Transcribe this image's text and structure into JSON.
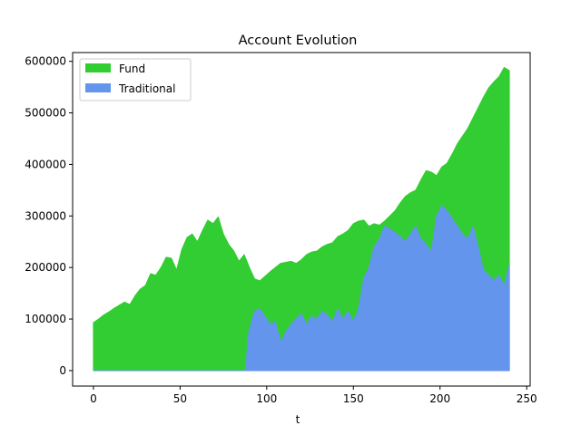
{
  "chart_data": {
    "type": "area",
    "title": "Account Evolution",
    "xlabel": "t",
    "ylabel": "",
    "xlim": [
      -12,
      252
    ],
    "ylim": [
      -30000,
      617000
    ],
    "xticks": [
      0,
      50,
      100,
      150,
      200,
      250
    ],
    "xtick_labels": [
      "0",
      "50",
      "100",
      "150",
      "200",
      "250"
    ],
    "yticks": [
      0,
      100000,
      200000,
      300000,
      400000,
      500000,
      600000
    ],
    "ytick_labels": [
      "0",
      "100000",
      "200000",
      "300000",
      "400000",
      "500000",
      "600000"
    ],
    "grid": false,
    "legend": "top-left",
    "series": [
      {
        "name": "Fund",
        "color": "#32cd32",
        "x": [
          0,
          3,
          6,
          9,
          12,
          15,
          18,
          21,
          24,
          27,
          30,
          33,
          36,
          39,
          42,
          45,
          48,
          51,
          54,
          57,
          60,
          63,
          66,
          69,
          72,
          75,
          78,
          81,
          84,
          87,
          90,
          93,
          96,
          99,
          102,
          105,
          108,
          111,
          114,
          117,
          120,
          123,
          126,
          129,
          132,
          135,
          138,
          141,
          144,
          147,
          150,
          153,
          156,
          159,
          162,
          165,
          168,
          171,
          174,
          177,
          180,
          183,
          186,
          189,
          192,
          195,
          198,
          201,
          204,
          207,
          210,
          213,
          216,
          219,
          222,
          225,
          228,
          231,
          234,
          237,
          240
        ],
        "values": [
          93000,
          100000,
          108000,
          114000,
          121000,
          127000,
          133000,
          128000,
          145000,
          158000,
          165000,
          188000,
          185000,
          200000,
          220000,
          218000,
          195000,
          235000,
          258000,
          265000,
          250000,
          272000,
          292000,
          285000,
          298000,
          265000,
          245000,
          232000,
          212000,
          225000,
          200000,
          178000,
          174000,
          183000,
          192000,
          200000,
          208000,
          210000,
          212000,
          208000,
          215000,
          225000,
          230000,
          232000,
          240000,
          245000,
          248000,
          260000,
          265000,
          272000,
          285000,
          290000,
          292000,
          280000,
          285000,
          282000,
          290000,
          300000,
          310000,
          325000,
          338000,
          345000,
          350000,
          370000,
          388000,
          385000,
          378000,
          395000,
          402000,
          420000,
          440000,
          455000,
          470000,
          490000,
          510000,
          530000,
          548000,
          560000,
          570000,
          588000,
          582000
        ]
      },
      {
        "name": "Traditional",
        "color": "#6495ed",
        "x": [
          0,
          3,
          6,
          9,
          12,
          15,
          18,
          21,
          24,
          27,
          30,
          33,
          36,
          39,
          42,
          45,
          48,
          51,
          54,
          57,
          60,
          63,
          66,
          69,
          72,
          75,
          78,
          81,
          84,
          87,
          88,
          89,
          90,
          93,
          96,
          99,
          102,
          105,
          108,
          111,
          114,
          117,
          120,
          123,
          126,
          129,
          132,
          135,
          138,
          141,
          144,
          147,
          150,
          153,
          156,
          159,
          162,
          165,
          168,
          171,
          174,
          177,
          180,
          183,
          186,
          189,
          192,
          195,
          198,
          201,
          204,
          207,
          210,
          213,
          216,
          219,
          222,
          225,
          228,
          231,
          234,
          237,
          240
        ],
        "values": [
          0,
          0,
          0,
          0,
          0,
          0,
          0,
          0,
          0,
          0,
          0,
          0,
          0,
          0,
          0,
          0,
          0,
          0,
          0,
          0,
          0,
          0,
          0,
          0,
          0,
          0,
          0,
          0,
          0,
          0,
          0,
          60000,
          80000,
          115000,
          120000,
          105000,
          90000,
          95000,
          55000,
          75000,
          90000,
          100000,
          110000,
          90000,
          105000,
          100000,
          115000,
          108000,
          95000,
          120000,
          100000,
          115000,
          95000,
          120000,
          180000,
          200000,
          240000,
          255000,
          280000,
          275000,
          268000,
          260000,
          250000,
          265000,
          280000,
          255000,
          245000,
          230000,
          300000,
          320000,
          310000,
          295000,
          280000,
          265000,
          255000,
          280000,
          240000,
          195000,
          185000,
          175000,
          185000,
          165000,
          205000
        ]
      }
    ]
  }
}
